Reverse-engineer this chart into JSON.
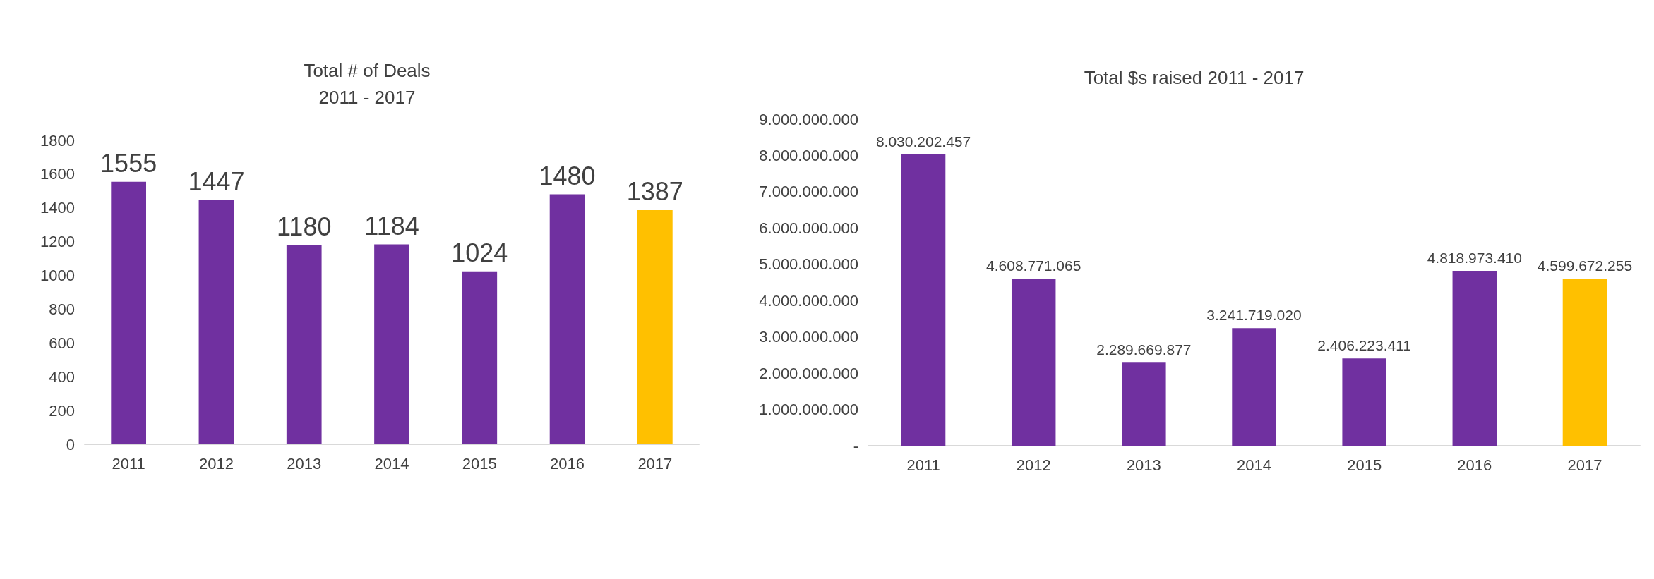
{
  "chart_data": [
    {
      "type": "bar",
      "title": "Total # of Deals",
      "subtitle": "2011 - 2017",
      "categories": [
        "2011",
        "2012",
        "2013",
        "2014",
        "2015",
        "2016",
        "2017"
      ],
      "values": [
        1555,
        1447,
        1180,
        1184,
        1024,
        1480,
        1387
      ],
      "colors": [
        "#7030a0",
        "#7030a0",
        "#7030a0",
        "#7030a0",
        "#7030a0",
        "#7030a0",
        "#ffc000"
      ],
      "ylim": [
        0,
        1800
      ],
      "yticks": [
        0,
        200,
        400,
        600,
        800,
        1000,
        1200,
        1400,
        1600,
        1800
      ],
      "data_labels": true
    },
    {
      "type": "bar",
      "title": "Total $s raised 2011 - 2017",
      "categories": [
        "2011",
        "2012",
        "2013",
        "2014",
        "2015",
        "2016",
        "2017"
      ],
      "values": [
        8030202457,
        4608771065,
        2289669877,
        3241719020,
        2406223411,
        4818973410,
        4599672255
      ],
      "value_labels": [
        "8.030.202.457",
        "4.608.771.065",
        "2.289.669.877",
        "3.241.719.020",
        "2.406.223.411",
        "4.818.973.410",
        "4.599.672.255"
      ],
      "colors": [
        "#7030a0",
        "#7030a0",
        "#7030a0",
        "#7030a0",
        "#7030a0",
        "#7030a0",
        "#ffc000"
      ],
      "ylim": [
        0,
        9000000000
      ],
      "yticks": [
        {
          "value": 0,
          "label": "-"
        },
        {
          "value": 1000000000,
          "label": "1.000.000.000"
        },
        {
          "value": 2000000000,
          "label": "2.000.000.000"
        },
        {
          "value": 3000000000,
          "label": "3.000.000.000"
        },
        {
          "value": 4000000000,
          "label": "4.000.000.000"
        },
        {
          "value": 5000000000,
          "label": "5.000.000.000"
        },
        {
          "value": 6000000000,
          "label": "6.000.000.000"
        },
        {
          "value": 7000000000,
          "label": "7.000.000.000"
        },
        {
          "value": 8000000000,
          "label": "8.000.000.000"
        },
        {
          "value": 9000000000,
          "label": "9.000.000.000"
        }
      ],
      "grid": false
    }
  ]
}
